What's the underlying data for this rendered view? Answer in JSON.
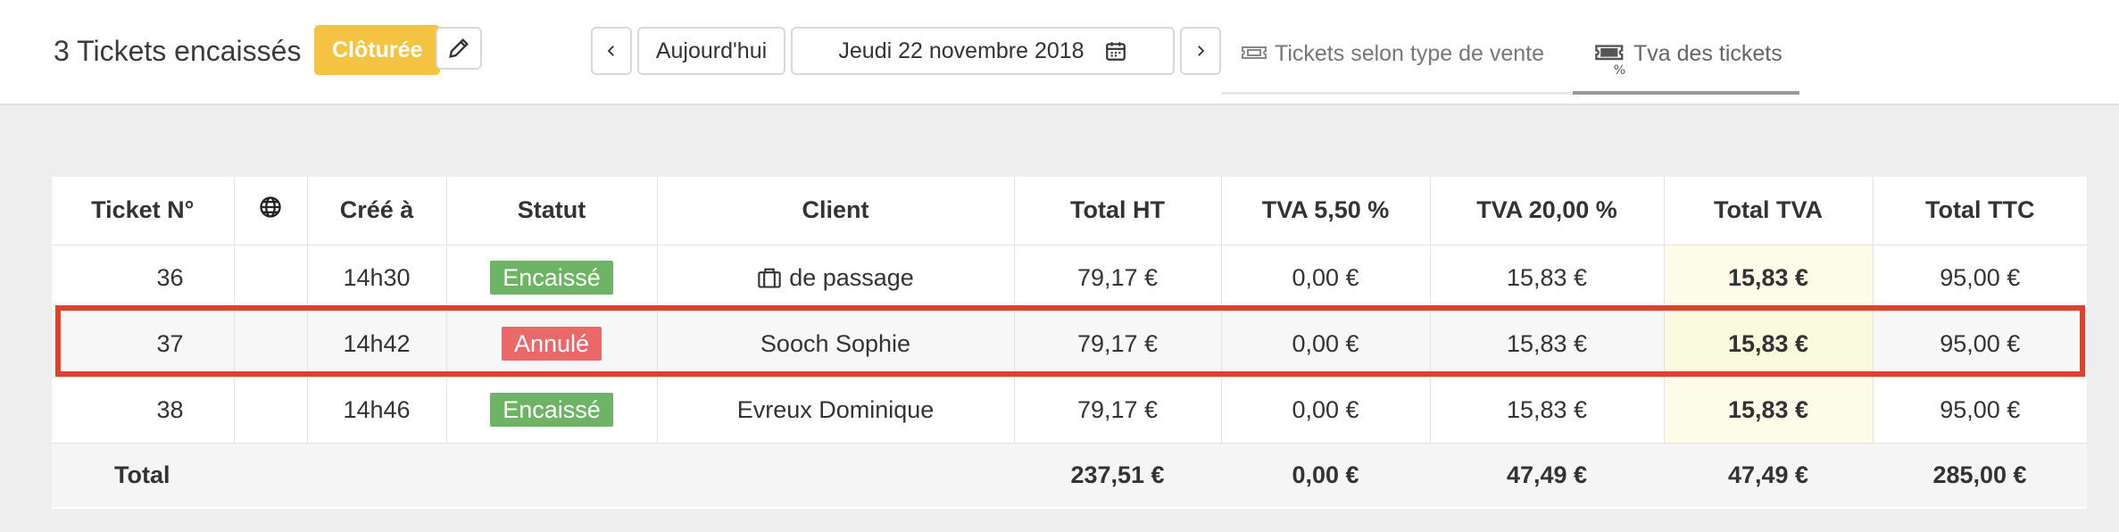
{
  "header": {
    "title": "3 Tickets encaissés",
    "status_badge": "Clôturée",
    "today_label": "Aujourd'hui",
    "date_label": "Jeudi 22 novembre 2018",
    "prev_icon": "chevron-left-icon",
    "next_icon": "chevron-right-icon"
  },
  "tabs": [
    {
      "label": "Tickets selon type de vente",
      "icon": "ticket-icon",
      "active": false
    },
    {
      "label": "Tva des tickets",
      "icon": "ticket-percent-icon",
      "active": true
    }
  ],
  "table": {
    "headers": [
      "Ticket N°",
      "",
      "Créé à",
      "Statut",
      "Client",
      "Total HT",
      "TVA 5,50 %",
      "TVA 20,00 %",
      "Total TVA",
      "Total TTC"
    ],
    "rows": [
      {
        "ticket": "36",
        "time": "14h30",
        "status": "Encaissé",
        "client": "de passage",
        "total_ht": "79,17 €",
        "tva_55": "0,00 €",
        "tva_20": "15,83 €",
        "total_tva": "15,83 €",
        "total_ttc": "95,00 €"
      },
      {
        "ticket": "37",
        "time": "14h42",
        "status": "Annulé",
        "client": "Sooch Sophie",
        "total_ht": "79,17 €",
        "tva_55": "0,00 €",
        "tva_20": "15,83 €",
        "total_tva": "15,83 €",
        "total_ttc": "95,00 €"
      },
      {
        "ticket": "38",
        "time": "14h46",
        "status": "Encaissé",
        "client": "Evreux Dominique",
        "total_ht": "79,17 €",
        "tva_55": "0,00 €",
        "tva_20": "15,83 €",
        "total_tva": "15,83 €",
        "total_ttc": "95,00 €"
      }
    ],
    "totals": {
      "label": "Total",
      "total_ht": "237,51 €",
      "tva_55": "0,00 €",
      "tva_20": "47,49 €",
      "total_tva": "47,49 €",
      "total_ttc": "285,00 €"
    }
  },
  "colors": {
    "badge_closed": "#f5c342",
    "status_ok": "#6db564",
    "status_cancel": "#e96969",
    "highlight": "#e0412c"
  }
}
